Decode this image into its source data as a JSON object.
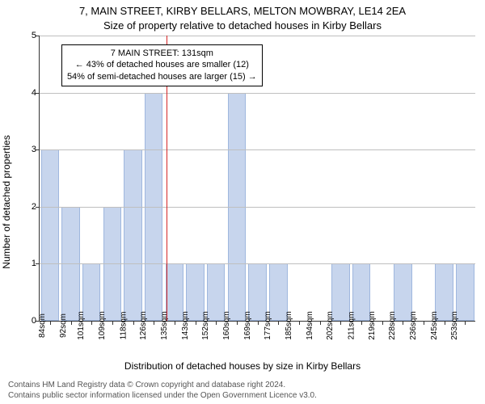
{
  "chart": {
    "type": "bar",
    "title_main": "7, MAIN STREET, KIRBY BELLARS, MELTON MOWBRAY, LE14 2EA",
    "title_sub": "Size of property relative to detached houses in Kirby Bellars",
    "ylabel": "Number of detached properties",
    "xlabel": "Distribution of detached houses by size in Kirby Bellars",
    "categories": [
      "84sqm",
      "92sqm",
      "101sqm",
      "109sqm",
      "118sqm",
      "126sqm",
      "135sqm",
      "143sqm",
      "152sqm",
      "160sqm",
      "169sqm",
      "177sqm",
      "185sqm",
      "194sqm",
      "202sqm",
      "211sqm",
      "219sqm",
      "228sqm",
      "236sqm",
      "245sqm",
      "253sqm"
    ],
    "values": [
      3,
      2,
      1,
      2,
      3,
      4,
      1,
      1,
      1,
      4,
      1,
      1,
      0,
      0,
      1,
      1,
      0,
      1,
      0,
      1,
      1
    ],
    "ylim": [
      0,
      5
    ],
    "yticks": [
      0,
      1,
      2,
      3,
      4,
      5
    ],
    "bar_color": "#c7d5ed",
    "bar_border": "#9fb7de",
    "grid_color": "#bfbfbf",
    "background_color": "#ffffff",
    "ref_line": {
      "x_index": 5.6,
      "color": "#d62728"
    },
    "annotation": {
      "line1": "7 MAIN STREET: 131sqm",
      "line2": "← 43% of detached houses are smaller (12)",
      "line3": "54% of semi-detached houses are larger (15) →"
    },
    "footnote_line1": "Contains HM Land Registry data © Crown copyright and database right 2024.",
    "footnote_line2": "Contains public sector information licensed under the Open Government Licence v3.0."
  }
}
